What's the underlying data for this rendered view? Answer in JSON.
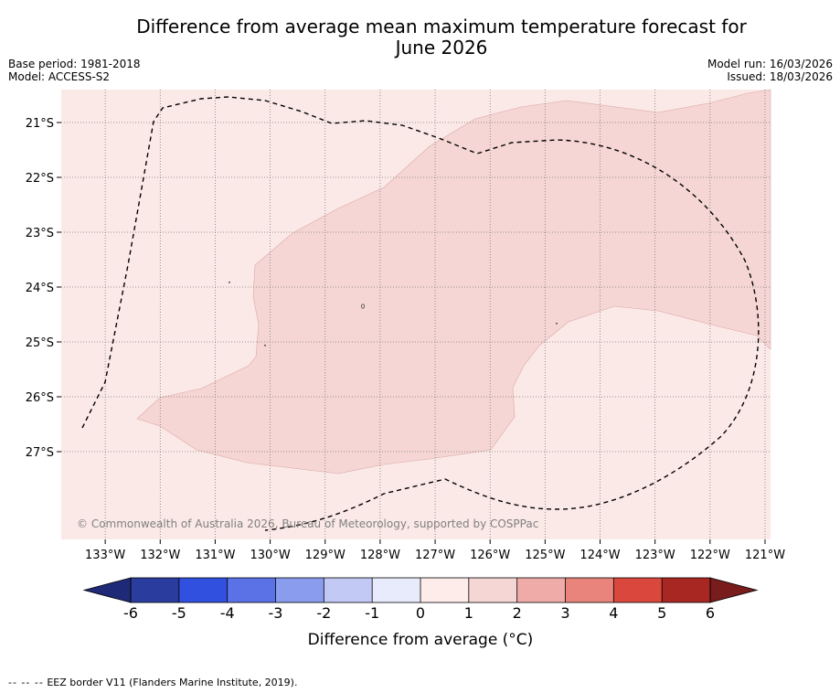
{
  "page": {
    "title_line1": "Difference from average mean maximum temperature forecast for",
    "title_line2": "June 2026",
    "base_period": "Base period: 1981-2018",
    "model": "Model: ACCESS-S2",
    "model_run": "Model run: 16/03/2026",
    "issued": "Issued: 18/03/2026",
    "copyright": "© Commonwealth of Australia 2026, Bureau of Meteorology, supported by COSPPac",
    "footnote_dash": "-- -- --",
    "footnote_text": "EEZ border V11 (Flanders Marine Institute, 2019)."
  },
  "chart_data": {
    "type": "heatmap",
    "title": "Difference from average mean maximum temperature forecast for June 2026",
    "x_axis": {
      "range": [
        -133.8,
        -120.9
      ],
      "ticks": [
        -133,
        -132,
        -131,
        -130,
        -129,
        -128,
        -127,
        -126,
        -125,
        -124,
        -123,
        -122,
        -121
      ],
      "tick_labels": [
        "133°W",
        "132°W",
        "131°W",
        "130°W",
        "129°W",
        "128°W",
        "127°W",
        "126°W",
        "125°W",
        "124°W",
        "123°W",
        "122°W",
        "121°W"
      ]
    },
    "y_axis": {
      "range": [
        -28.6,
        -20.4
      ],
      "ticks": [
        -21,
        -22,
        -23,
        -24,
        -25,
        -26,
        -27
      ],
      "tick_labels": [
        "21°S",
        "22°S",
        "23°S",
        "24°S",
        "25°S",
        "26°S",
        "27°S"
      ]
    },
    "grid": true,
    "fields": [
      {
        "category": "0 to 1",
        "color": "#fbe9e7",
        "extent": "background"
      },
      {
        "category": "1 to 2",
        "color": "#f5d6d4",
        "extent": "central band across the EEZ"
      }
    ],
    "colorbar": {
      "label": "Difference from average ($^\\circ$C)",
      "label_display": "Difference from average (°C)",
      "ticks": [
        "-6",
        "-5",
        "-4",
        "-3",
        "-2",
        "-1",
        "0",
        "1",
        "2",
        "3",
        "4",
        "5",
        "6"
      ],
      "colors": [
        "#2a3c9e",
        "#3250e0",
        "#5b72e6",
        "#8a9cee",
        "#c2c9f5",
        "#e8ebfb",
        "#fdece9",
        "#f5d6d4",
        "#eeaba8",
        "#e8847b",
        "#d9473d",
        "#a82722"
      ],
      "under_color": "#1e2a78",
      "over_color": "#781c1c"
    }
  }
}
